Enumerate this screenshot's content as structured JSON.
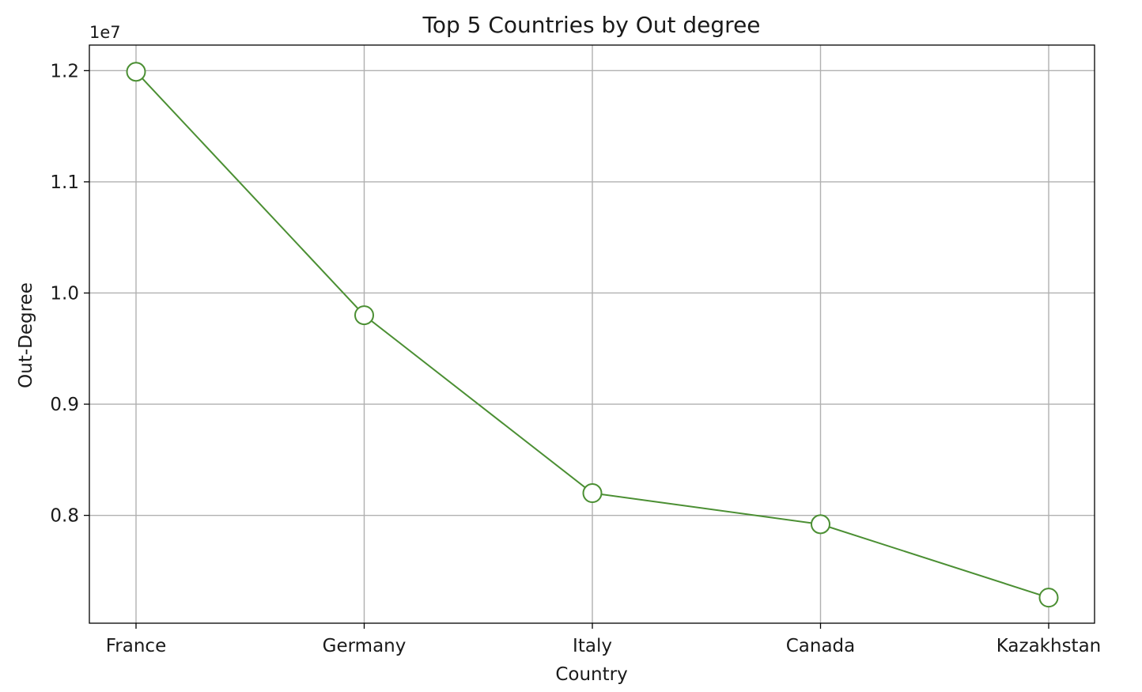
{
  "chart_data": {
    "type": "line",
    "title": "Top 5 Countries by Out degree",
    "xlabel": "Country",
    "ylabel": "Out-Degree",
    "offset_label": "1e7",
    "categories": [
      "France",
      "Germany",
      "Italy",
      "Canada",
      "Kazakhstan"
    ],
    "series": [
      {
        "values": [
          11990000,
          9800000,
          8200000,
          7920000,
          7260000
        ]
      }
    ],
    "ylim": [
      7030000,
      12230000
    ],
    "yticks": [
      8000000,
      9000000,
      10000000,
      11000000,
      12000000
    ],
    "ytick_labels": [
      "0.8",
      "0.9",
      "1.0",
      "1.1",
      "1.2"
    ],
    "grid": true,
    "legend": "none",
    "colors": {
      "line": "#4b8f33",
      "marker_fill": "#ffffff",
      "grid": "#b0b0b0",
      "axes": "#000000"
    }
  }
}
